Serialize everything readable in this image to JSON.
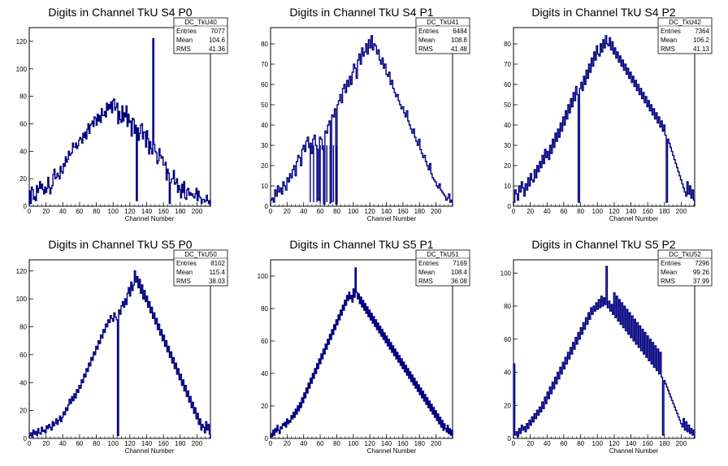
{
  "chart_data": [
    {
      "type": "histogram",
      "title": "Digits in Channel TkU S4 P0",
      "xlabel": "Channel Number",
      "xlim": [
        0,
        216
      ],
      "ylim": [
        0,
        130
      ],
      "xticks": [
        0,
        20,
        40,
        60,
        80,
        100,
        120,
        140,
        160,
        180,
        200
      ],
      "yticks": [
        0,
        20,
        40,
        60,
        80,
        100,
        120
      ],
      "stats": {
        "name": "DC_TkU40",
        "rows": [
          [
            "Entries",
            "7077"
          ],
          [
            "Mean",
            "104.6"
          ],
          [
            "RMS",
            "41.36"
          ]
        ]
      },
      "values": [
        11,
        2,
        14,
        12,
        5,
        7,
        4,
        15,
        10,
        13,
        18,
        13,
        16,
        12,
        9,
        14,
        10,
        13,
        21,
        14,
        9,
        13,
        15,
        23,
        27,
        20,
        21,
        24,
        22,
        20,
        29,
        25,
        24,
        31,
        29,
        36,
        32,
        34,
        40,
        37,
        38,
        39,
        46,
        43,
        43,
        46,
        42,
        44,
        48,
        50,
        49,
        46,
        53,
        50,
        54,
        49,
        56,
        60,
        53,
        59,
        60,
        62,
        58,
        65,
        64,
        59,
        67,
        62,
        66,
        61,
        71,
        66,
        66,
        69,
        65,
        75,
        70,
        74,
        71,
        76,
        68,
        77,
        78,
        70,
        72,
        75,
        60,
        69,
        63,
        61,
        73,
        62,
        68,
        65,
        73,
        58,
        67,
        61,
        62,
        51,
        64,
        63,
        53,
        59,
        4,
        57,
        48,
        53,
        59,
        60,
        49,
        54,
        54,
        43,
        55,
        49,
        38,
        47,
        42,
        38,
        122,
        45,
        40,
        39,
        31,
        33,
        42,
        37,
        35,
        36,
        30,
        30,
        32,
        19,
        27,
        24,
        2,
        17,
        20,
        20,
        26,
        16,
        17,
        20,
        10,
        15,
        12,
        6,
        16,
        10,
        18,
        6,
        5,
        12,
        13,
        8,
        10,
        8,
        9,
        7,
        6,
        9,
        13,
        4,
        11,
        7,
        6,
        2,
        5,
        5,
        3,
        4,
        8,
        4,
        2,
        4
      ],
      "spikes": []
    },
    {
      "type": "histogram",
      "title": "Digits in Channel TkU S4 P1",
      "xlabel": "Channel Number",
      "xlim": [
        0,
        220
      ],
      "ylim": [
        0,
        88
      ],
      "xticks": [
        0,
        20,
        40,
        60,
        80,
        100,
        120,
        140,
        160,
        180,
        200
      ],
      "yticks": [
        0,
        10,
        20,
        30,
        40,
        50,
        60,
        70,
        80
      ],
      "stats": {
        "name": "DC_TkU41",
        "rows": [
          [
            "Entries",
            "6484"
          ],
          [
            "Mean",
            "108.8"
          ],
          [
            "RMS",
            "41.48"
          ]
        ]
      },
      "values": [
        3,
        4,
        2,
        8,
        5,
        10,
        7,
        9,
        6,
        12,
        10,
        8,
        14,
        12,
        16,
        14,
        18,
        20,
        15,
        22,
        25,
        24,
        20,
        28,
        30,
        27,
        32,
        34,
        29,
        31,
        26,
        33,
        35,
        30,
        28,
        3,
        34,
        33,
        28,
        1,
        37,
        36,
        40,
        42,
        2,
        45,
        44,
        48,
        1,
        50,
        52,
        55,
        51,
        58,
        60,
        56,
        62,
        59,
        64,
        60,
        66,
        70,
        68,
        63,
        72,
        75,
        70,
        78,
        74,
        76,
        80,
        75,
        82,
        78,
        84,
        77,
        80,
        79,
        75,
        77,
        72,
        70,
        73,
        68,
        70,
        65,
        64,
        66,
        60,
        62,
        58,
        56,
        54,
        55,
        52,
        50,
        48,
        49,
        46,
        44,
        47,
        42,
        40,
        38,
        36,
        38,
        34,
        32,
        30,
        33,
        28,
        26,
        24,
        25,
        22,
        20,
        18,
        21,
        16,
        14,
        13,
        12,
        10,
        9,
        11,
        8,
        7,
        6,
        5,
        3,
        4,
        6,
        2,
        3
      ],
      "spikes": [
        [
          48,
          2
        ],
        [
          52,
          2
        ],
        [
          56,
          2
        ],
        [
          60,
          2
        ],
        [
          64,
          2
        ],
        [
          68,
          2
        ],
        [
          72,
          1
        ],
        [
          76,
          2
        ],
        [
          80,
          2
        ]
      ]
    },
    {
      "type": "histogram",
      "title": "Digits in Channel TkU S4 P2",
      "xlabel": "Channel Number",
      "xlim": [
        0,
        216
      ],
      "ylim": [
        0,
        88
      ],
      "xticks": [
        0,
        20,
        40,
        60,
        80,
        100,
        120,
        140,
        160,
        180,
        200
      ],
      "yticks": [
        0,
        10,
        20,
        30,
        40,
        50,
        60,
        70,
        80
      ],
      "stats": {
        "name": "DC_TkU42",
        "rows": [
          [
            "Entries",
            "7364"
          ],
          [
            "Mean",
            "106.2"
          ],
          [
            "RMS",
            "41.13"
          ]
        ]
      },
      "values": [
        2,
        8,
        6,
        3,
        10,
        7,
        12,
        9,
        5,
        11,
        8,
        14,
        10,
        16,
        13,
        12,
        18,
        14,
        20,
        17,
        22,
        19,
        25,
        21,
        28,
        24,
        27,
        23,
        30,
        26,
        33,
        29,
        36,
        32,
        38,
        34,
        41,
        37,
        44,
        40,
        47,
        43,
        50,
        46,
        53,
        49,
        56,
        52,
        59,
        55,
        2,
        58,
        61,
        57,
        64,
        60,
        67,
        63,
        70,
        66,
        73,
        69,
        76,
        72,
        79,
        75,
        74,
        80,
        76,
        82,
        78,
        84,
        80,
        79,
        83,
        77,
        81,
        75,
        78,
        73,
        76,
        71,
        74,
        69,
        72,
        67,
        70,
        65,
        68,
        63,
        66,
        61,
        64,
        59,
        62,
        57,
        60,
        55,
        58,
        53,
        56,
        51,
        54,
        49,
        52,
        47,
        50,
        45,
        48,
        43,
        46,
        41,
        44,
        39,
        42,
        37,
        40,
        35,
        2,
        33,
        31,
        29,
        27,
        25,
        23,
        21,
        19,
        17,
        15,
        13,
        11,
        9,
        7,
        5,
        12,
        6,
        10,
        4,
        8,
        3
      ],
      "spikes": []
    },
    {
      "type": "histogram",
      "title": "Digits in Channel TkU S5 P0",
      "xlabel": "Channel Number",
      "xlim": [
        0,
        216
      ],
      "ylim": [
        0,
        128
      ],
      "xticks": [
        0,
        20,
        40,
        60,
        80,
        100,
        120,
        140,
        160,
        180,
        200
      ],
      "yticks": [
        0,
        20,
        40,
        60,
        80,
        100,
        120
      ],
      "stats": {
        "name": "DC_TkU50",
        "rows": [
          [
            "Entries",
            "8102"
          ],
          [
            "Mean",
            "115.4"
          ],
          [
            "RMS",
            "38.03"
          ]
        ]
      },
      "values": [
        2,
        4,
        1,
        6,
        3,
        5,
        2,
        7,
        4,
        3,
        8,
        5,
        6,
        4,
        9,
        7,
        10,
        8,
        6,
        12,
        9,
        11,
        14,
        10,
        13,
        16,
        12,
        15,
        19,
        17,
        22,
        20,
        24,
        28,
        25,
        30,
        27,
        32,
        29,
        35,
        33,
        38,
        36,
        42,
        40,
        46,
        44,
        50,
        48,
        54,
        52,
        58,
        56,
        62,
        60,
        66,
        64,
        70,
        68,
        74,
        72,
        78,
        76,
        82,
        80,
        85,
        83,
        88,
        86,
        84,
        90,
        87,
        85,
        2,
        92,
        89,
        95,
        98,
        94,
        100,
        96,
        104,
        108,
        102,
        112,
        106,
        110,
        120,
        112,
        116,
        108,
        114,
        104,
        110,
        100,
        106,
        98,
        102,
        94,
        98,
        90,
        94,
        86,
        90,
        82,
        86,
        78,
        82,
        74,
        78,
        70,
        74,
        66,
        70,
        62,
        66,
        58,
        62,
        54,
        58,
        50,
        54,
        46,
        50,
        42,
        46,
        38,
        42,
        34,
        38,
        30,
        34,
        26,
        30,
        22,
        26,
        18,
        22,
        14,
        18,
        10,
        14,
        6,
        10,
        8,
        4,
        12,
        6,
        10,
        3
      ],
      "spikes": []
    },
    {
      "type": "histogram",
      "title": "Digits in Channel TkU S5 P1",
      "xlabel": "Channel Number",
      "xlim": [
        0,
        220
      ],
      "ylim": [
        0,
        110
      ],
      "xticks": [
        0,
        20,
        40,
        60,
        80,
        100,
        120,
        140,
        160,
        180,
        200
      ],
      "yticks": [
        0,
        20,
        40,
        60,
        80,
        100
      ],
      "stats": {
        "name": "DC_TkU51",
        "rows": [
          [
            "Entries",
            "7169"
          ],
          [
            "Mean",
            "108.4"
          ],
          [
            "RMS",
            "36.08"
          ]
        ]
      },
      "values": [
        3,
        1,
        5,
        2,
        6,
        4,
        8,
        5,
        3,
        7,
        6,
        9,
        8,
        10,
        7,
        12,
        9,
        11,
        10,
        14,
        12,
        16,
        13,
        18,
        15,
        20,
        17,
        22,
        19,
        25,
        22,
        28,
        25,
        31,
        28,
        34,
        31,
        37,
        34,
        40,
        37,
        43,
        40,
        46,
        43,
        49,
        46,
        52,
        49,
        55,
        52,
        58,
        55,
        61,
        58,
        64,
        61,
        67,
        64,
        70,
        67,
        73,
        70,
        76,
        73,
        79,
        76,
        82,
        79,
        85,
        82,
        88,
        85,
        90,
        86,
        88,
        84,
        92,
        87,
        105,
        90,
        86,
        89,
        83,
        87,
        81,
        85,
        79,
        83,
        77,
        81,
        75,
        79,
        73,
        77,
        71,
        75,
        69,
        73,
        67,
        71,
        65,
        69,
        63,
        67,
        61,
        65,
        59,
        63,
        57,
        61,
        55,
        59,
        53,
        57,
        51,
        55,
        49,
        53,
        47,
        51,
        45,
        49,
        43,
        47,
        41,
        45,
        39,
        43,
        37,
        41,
        35,
        39,
        33,
        37,
        31,
        35,
        29,
        33,
        27,
        31,
        25,
        29,
        23,
        27,
        21,
        25,
        19,
        23,
        17,
        21,
        15,
        19,
        13,
        17,
        11,
        15,
        9,
        13,
        7,
        11,
        5,
        9,
        6,
        4,
        8,
        3,
        6,
        2,
        5
      ],
      "spikes": []
    },
    {
      "type": "histogram",
      "title": "Digits in Channel TkU S5 P2",
      "xlabel": "Channel Number",
      "xlim": [
        0,
        216
      ],
      "ylim": [
        0,
        108
      ],
      "xticks": [
        0,
        20,
        40,
        60,
        80,
        100,
        120,
        140,
        160,
        180,
        200
      ],
      "yticks": [
        0,
        20,
        40,
        60,
        80,
        100
      ],
      "stats": {
        "name": "DC_TkU52",
        "rows": [
          [
            "Entries",
            "7296"
          ],
          [
            "Mean",
            "99.26"
          ],
          [
            "RMS",
            "37.99"
          ]
        ]
      },
      "values": [
        45,
        2,
        4,
        1,
        6,
        3,
        8,
        5,
        7,
        4,
        9,
        6,
        11,
        8,
        13,
        10,
        15,
        12,
        17,
        14,
        19,
        16,
        22,
        18,
        25,
        21,
        28,
        24,
        31,
        27,
        34,
        30,
        37,
        33,
        40,
        36,
        43,
        39,
        46,
        42,
        49,
        45,
        52,
        48,
        55,
        51,
        58,
        54,
        61,
        57,
        64,
        60,
        67,
        63,
        70,
        66,
        73,
        69,
        76,
        72,
        79,
        75,
        80,
        77,
        82,
        78,
        84,
        79,
        86,
        80,
        85,
        81,
        104,
        79,
        83,
        77,
        81,
        75,
        88,
        73,
        86,
        71,
        84,
        69,
        82,
        67,
        80,
        65,
        78,
        63,
        76,
        61,
        74,
        59,
        72,
        57,
        70,
        55,
        68,
        53,
        66,
        51,
        64,
        49,
        62,
        47,
        60,
        45,
        58,
        43,
        56,
        41,
        54,
        39,
        52,
        37,
        2,
        35,
        33,
        31,
        29,
        27,
        25,
        23,
        21,
        19,
        17,
        15,
        13,
        11,
        9,
        7,
        12,
        5,
        10,
        4,
        8,
        3,
        6,
        2,
        5
      ],
      "spikes": []
    }
  ]
}
